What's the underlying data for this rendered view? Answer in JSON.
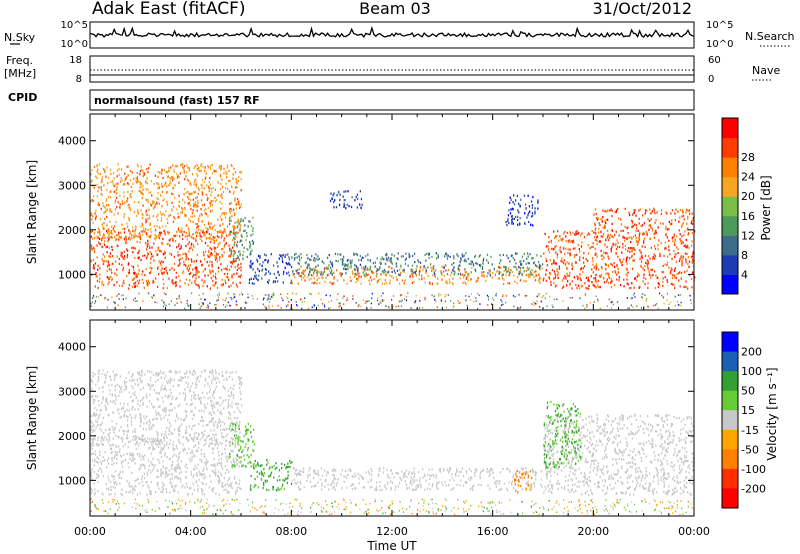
{
  "header": {
    "station": "Adak East (fitACF)",
    "beam": "Beam 03",
    "date": "31/Oct/2012"
  },
  "strips": {
    "nsky_label": "N.Sky",
    "freq_label_line1": "Freq.",
    "freq_label_line2": "[MHz]",
    "cpid_label": "CPID",
    "nsearch_label": "N.Search",
    "nave_label": "Nave",
    "nsky_ticks": [
      "10^5",
      "10^0"
    ],
    "nsearch_ticks": [
      "10^5",
      "10^0"
    ],
    "freq_ticks": [
      "18",
      "8"
    ],
    "nave_ticks": [
      "60",
      "0"
    ],
    "cpid_text": "normalsound (fast) 157 RF"
  },
  "colors": {
    "power_scale": [
      "#0000ff",
      "#1d3cb4",
      "#3c6e8c",
      "#4b9c5a",
      "#7bbd49",
      "#f5a623",
      "#ff7f00",
      "#ff3c00",
      "#ff0000"
    ],
    "velocity_scale": [
      "#0000ff",
      "#1a5fb4",
      "#33a033",
      "#66cc33",
      "#c8c8c8",
      "#ffa500",
      "#ff7f00",
      "#ff3000",
      "#ff0000"
    ]
  },
  "chart_data": [
    {
      "type": "heatmap",
      "panel": "power",
      "ylabel": "Slant Range [km]",
      "xlabel": "",
      "ylim": [
        200,
        4600
      ],
      "y_ticks": [
        1000,
        2000,
        3000,
        4000
      ],
      "colorbar_label": "Power [dB]",
      "colorbar_ticks": [
        4,
        8,
        12,
        16,
        20,
        24,
        28
      ],
      "colorbar_range": [
        0,
        32
      ],
      "bands": [
        {
          "x": [
            0,
            6
          ],
          "y": [
            700,
            2000
          ],
          "v": 26
        },
        {
          "x": [
            0,
            6
          ],
          "y": [
            1800,
            3500
          ],
          "v": 22
        },
        {
          "x": [
            5.5,
            6.5
          ],
          "y": [
            1300,
            2300
          ],
          "v": 12
        },
        {
          "x": [
            6.3,
            8
          ],
          "y": [
            800,
            1500
          ],
          "v": 6
        },
        {
          "x": [
            8,
            18
          ],
          "y": [
            800,
            1200
          ],
          "v": 22
        },
        {
          "x": [
            8,
            18
          ],
          "y": [
            1000,
            1500
          ],
          "v": 10
        },
        {
          "x": [
            9.5,
            10.8
          ],
          "y": [
            2500,
            2900
          ],
          "v": 5
        },
        {
          "x": [
            16.5,
            17.8
          ],
          "y": [
            2100,
            2800
          ],
          "v": 5
        },
        {
          "x": [
            18,
            20
          ],
          "y": [
            700,
            2000
          ],
          "v": 26
        },
        {
          "x": [
            20,
            24
          ],
          "y": [
            700,
            2500
          ],
          "v": 26
        }
      ]
    },
    {
      "type": "heatmap",
      "panel": "velocity",
      "ylabel": "Slant Range [km]",
      "xlabel": "Time UT",
      "ylim": [
        200,
        4600
      ],
      "y_ticks": [
        1000,
        2000,
        3000,
        4000
      ],
      "x_ticks": [
        "00:00",
        "04:00",
        "08:00",
        "12:00",
        "16:00",
        "20:00",
        "00:00"
      ],
      "xlim": [
        0,
        24
      ],
      "colorbar_label": "Velocity [m s⁻¹]",
      "colorbar_ticks": [
        200,
        100,
        50,
        15,
        -15,
        -50,
        -100,
        -200
      ],
      "bands": [
        {
          "x": [
            0,
            6
          ],
          "y": [
            700,
            2000
          ],
          "v": 0
        },
        {
          "x": [
            0,
            6
          ],
          "y": [
            1800,
            3500
          ],
          "v": 0
        },
        {
          "x": [
            5.5,
            6.5
          ],
          "y": [
            1300,
            2300
          ],
          "v": 40
        },
        {
          "x": [
            6.3,
            8
          ],
          "y": [
            800,
            1500
          ],
          "v": 60
        },
        {
          "x": [
            8,
            18
          ],
          "y": [
            800,
            1300
          ],
          "v": 0
        },
        {
          "x": [
            16.8,
            17.6
          ],
          "y": [
            750,
            1250
          ],
          "v": -60
        },
        {
          "x": [
            18,
            24
          ],
          "y": [
            700,
            2500
          ],
          "v": 0
        },
        {
          "x": [
            18,
            19.5
          ],
          "y": [
            1300,
            2800
          ],
          "v": 50
        }
      ]
    }
  ]
}
